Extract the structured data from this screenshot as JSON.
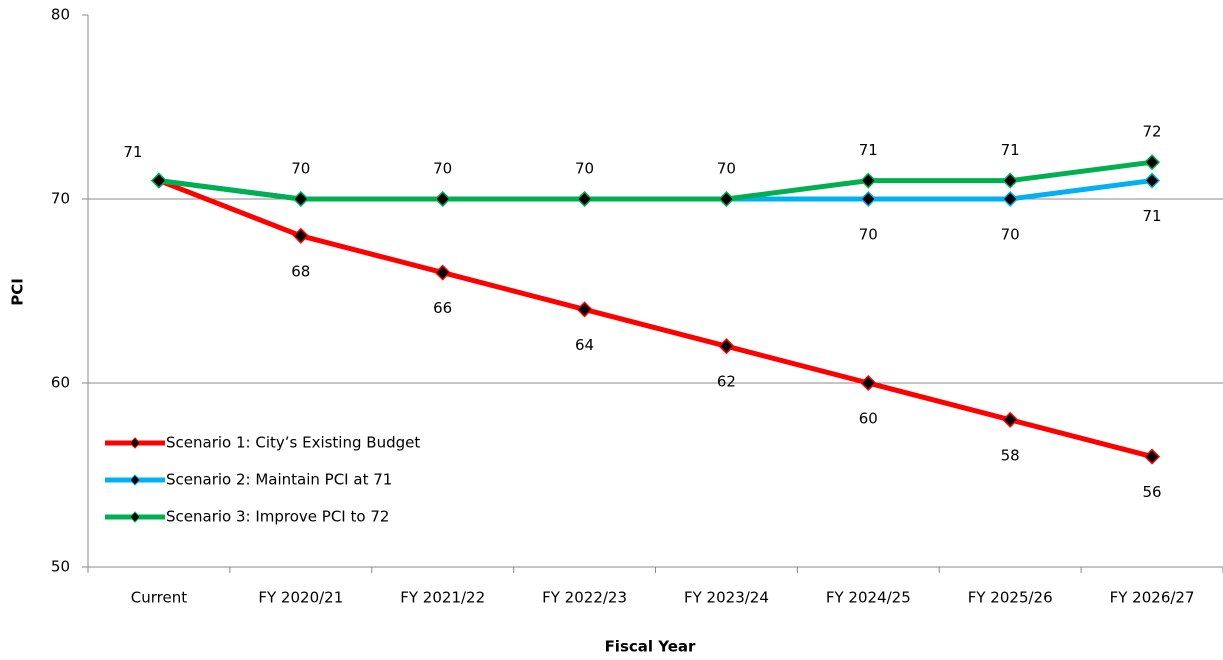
{
  "chart_data": {
    "type": "line",
    "x_label": "Fiscal Year",
    "y_label": "PCI",
    "categories": [
      "Current",
      "FY 2020/21",
      "FY 2021/22",
      "FY 2022/23",
      "FY 2023/24",
      "FY 2024/25",
      "FY 2025/26",
      "FY 2026/27"
    ],
    "series": [
      {
        "name": "Scenario 1: City’s Existing Budget",
        "color": "#ff0000",
        "values": [
          71,
          68,
          66,
          64,
          62,
          60,
          58,
          56
        ]
      },
      {
        "name": "Scenario 2: Maintain PCI at 71",
        "color": "#00b0f0",
        "values": [
          71,
          70,
          70,
          70,
          70,
          70,
          70,
          71
        ]
      },
      {
        "name": "Scenario 3: Improve PCI to 72",
        "color": "#00b050",
        "values": [
          71,
          70,
          70,
          70,
          70,
          71,
          71,
          72
        ]
      }
    ],
    "ylim": [
      50,
      80
    ],
    "yticks": [
      50,
      60,
      70,
      80
    ],
    "grid": true,
    "legend": "lower left"
  }
}
